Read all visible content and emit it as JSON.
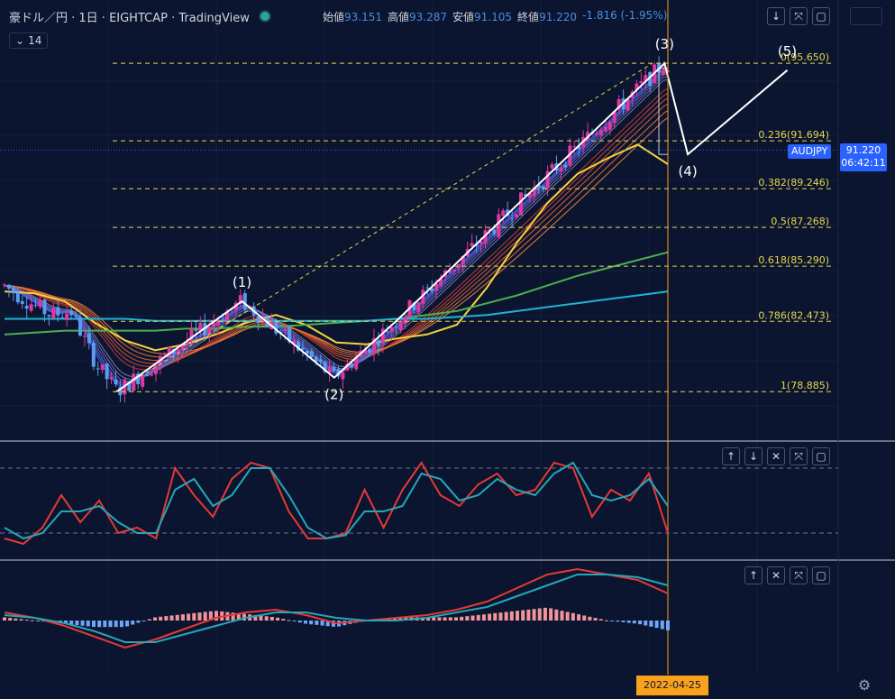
{
  "header": {
    "symbol_title": "豪ドル／円 · 1日 · EIGHTCAP · TradingView",
    "ohlc": [
      {
        "label": "始値",
        "value": "93.151"
      },
      {
        "label": "高値",
        "value": "93.287"
      },
      {
        "label": "安値",
        "value": "91.105"
      },
      {
        "label": "終値",
        "value": "91.220"
      }
    ],
    "change": "-1.816 (-1.95%)",
    "indicator_tag": "14",
    "status_dot_color": "#26a69a"
  },
  "price_label": {
    "symbol": "AUDJPY",
    "price": "91.220",
    "countdown": "06:42:11",
    "color": "#2962ff"
  },
  "time_cursor": {
    "date": "2022-04-25",
    "color": "#f9a11b"
  },
  "main_controls": [
    "down-arrow-icon",
    "collapse-icon",
    "maximize-icon"
  ],
  "pane_controls": [
    "up-arrow-icon",
    "down-arrow-icon",
    "close-icon",
    "collapse-icon",
    "maximize-icon"
  ],
  "colors": {
    "background": "#0b1530",
    "bull_candle": "#e0389f",
    "bear_candle": "#5b9cf0",
    "fib_lines": "#e8d84a",
    "wave_lines": "#ffffff",
    "ema_fast": "#f5d33b",
    "ema_slow_green": "#4caf50",
    "ema_slowest_cyan": "#1fb4d6",
    "oscillator_fast": "#e53935",
    "oscillator_slow": "#26a6b8"
  },
  "chart_data": [
    {
      "type": "candlestick",
      "pair": "AUDJPY",
      "timeframe": "1D",
      "ylim": [
        76.5,
        97.5
      ],
      "current_price": 91.22,
      "fib_levels": [
        {
          "ratio": "0",
          "price": 95.65,
          "label": "0(95.650)"
        },
        {
          "ratio": "0.236",
          "price": 91.694,
          "label": "0.236(91.694)"
        },
        {
          "ratio": "0.382",
          "price": 89.246,
          "label": "0.382(89.246)"
        },
        {
          "ratio": "0.5",
          "price": 87.268,
          "label": "0.5(87.268)"
        },
        {
          "ratio": "0.618",
          "price": 85.29,
          "label": "0.618(85.290)"
        },
        {
          "ratio": "0.786",
          "price": 82.473,
          "label": "0.786(82.473)"
        },
        {
          "ratio": "1",
          "price": 78.885,
          "label": "1(78.885)"
        }
      ],
      "wave_labels": [
        "(1)",
        "(2)",
        "(3)",
        "(4)",
        "(5)"
      ],
      "wave_points": [
        {
          "t": 0.17,
          "price": 78.9
        },
        {
          "t": 0.358,
          "price": 83.5
        },
        {
          "t": 0.497,
          "price": 79.6
        },
        {
          "t": 0.594,
          "price": 82.6
        },
        {
          "t": 0.995,
          "price": 95.65
        },
        {
          "t": 1.03,
          "price": 91.0
        },
        {
          "t": 1.18,
          "price": 95.3
        }
      ],
      "ema_ribbon": [
        {
          "name": "fast",
          "color": "#f5d33b",
          "values": [
            84.0,
            83.9,
            83.5,
            82.4,
            81.5,
            81.0,
            81.3,
            81.8,
            82.4,
            82.8,
            82.3,
            81.4,
            81.3,
            81.6,
            81.8,
            82.3,
            84.2,
            86.5,
            88.5,
            90.0,
            90.8,
            91.5,
            90.5
          ]
        },
        {
          "name": "slow",
          "color": "#4caf50",
          "values": [
            81.8,
            81.9,
            82.0,
            82.0,
            82.0,
            82.0,
            82.1,
            82.1,
            82.2,
            82.2,
            82.3,
            82.4,
            82.5,
            82.6,
            82.8,
            83.0,
            83.4,
            83.8,
            84.3,
            84.8,
            85.2,
            85.6,
            86.0
          ]
        },
        {
          "name": "slowest",
          "color": "#1fb4d6",
          "values": [
            82.6,
            82.6,
            82.6,
            82.6,
            82.6,
            82.5,
            82.5,
            82.5,
            82.5,
            82.5,
            82.5,
            82.5,
            82.5,
            82.6,
            82.6,
            82.7,
            82.8,
            83.0,
            83.2,
            83.4,
            83.6,
            83.8,
            84.0
          ]
        }
      ]
    },
    {
      "type": "line",
      "name": "stochastic-oscillator",
      "series": [
        {
          "color": "#e53935",
          "values": [
            15,
            10,
            25,
            55,
            30,
            50,
            20,
            25,
            15,
            80,
            55,
            35,
            70,
            85,
            80,
            40,
            15,
            15,
            20,
            60,
            25,
            60,
            85,
            55,
            45,
            65,
            75,
            55,
            60,
            85,
            80,
            35,
            60,
            50,
            75,
            20
          ]
        },
        {
          "color": "#26a6b8",
          "values": [
            25,
            15,
            20,
            40,
            40,
            45,
            30,
            20,
            20,
            60,
            70,
            45,
            55,
            80,
            80,
            55,
            25,
            15,
            18,
            40,
            40,
            45,
            75,
            70,
            50,
            55,
            70,
            60,
            55,
            75,
            85,
            55,
            50,
            55,
            70,
            45
          ]
        }
      ]
    },
    {
      "type": "line",
      "name": "macd",
      "series": [
        {
          "color": "#e53935",
          "values": [
            0.3,
            0.1,
            -0.2,
            -0.6,
            -1.0,
            -0.7,
            -0.3,
            0.1,
            0.3,
            0.4,
            0.2,
            -0.1,
            0.0,
            0.1,
            0.2,
            0.4,
            0.7,
            1.2,
            1.7,
            1.9,
            1.7,
            1.5,
            1.0
          ]
        },
        {
          "color": "#26a6b8",
          "values": [
            0.2,
            0.1,
            -0.1,
            -0.4,
            -0.8,
            -0.8,
            -0.5,
            -0.2,
            0.1,
            0.3,
            0.3,
            0.1,
            0.0,
            0.0,
            0.1,
            0.3,
            0.5,
            0.9,
            1.3,
            1.7,
            1.7,
            1.6,
            1.3
          ]
        }
      ]
    }
  ]
}
